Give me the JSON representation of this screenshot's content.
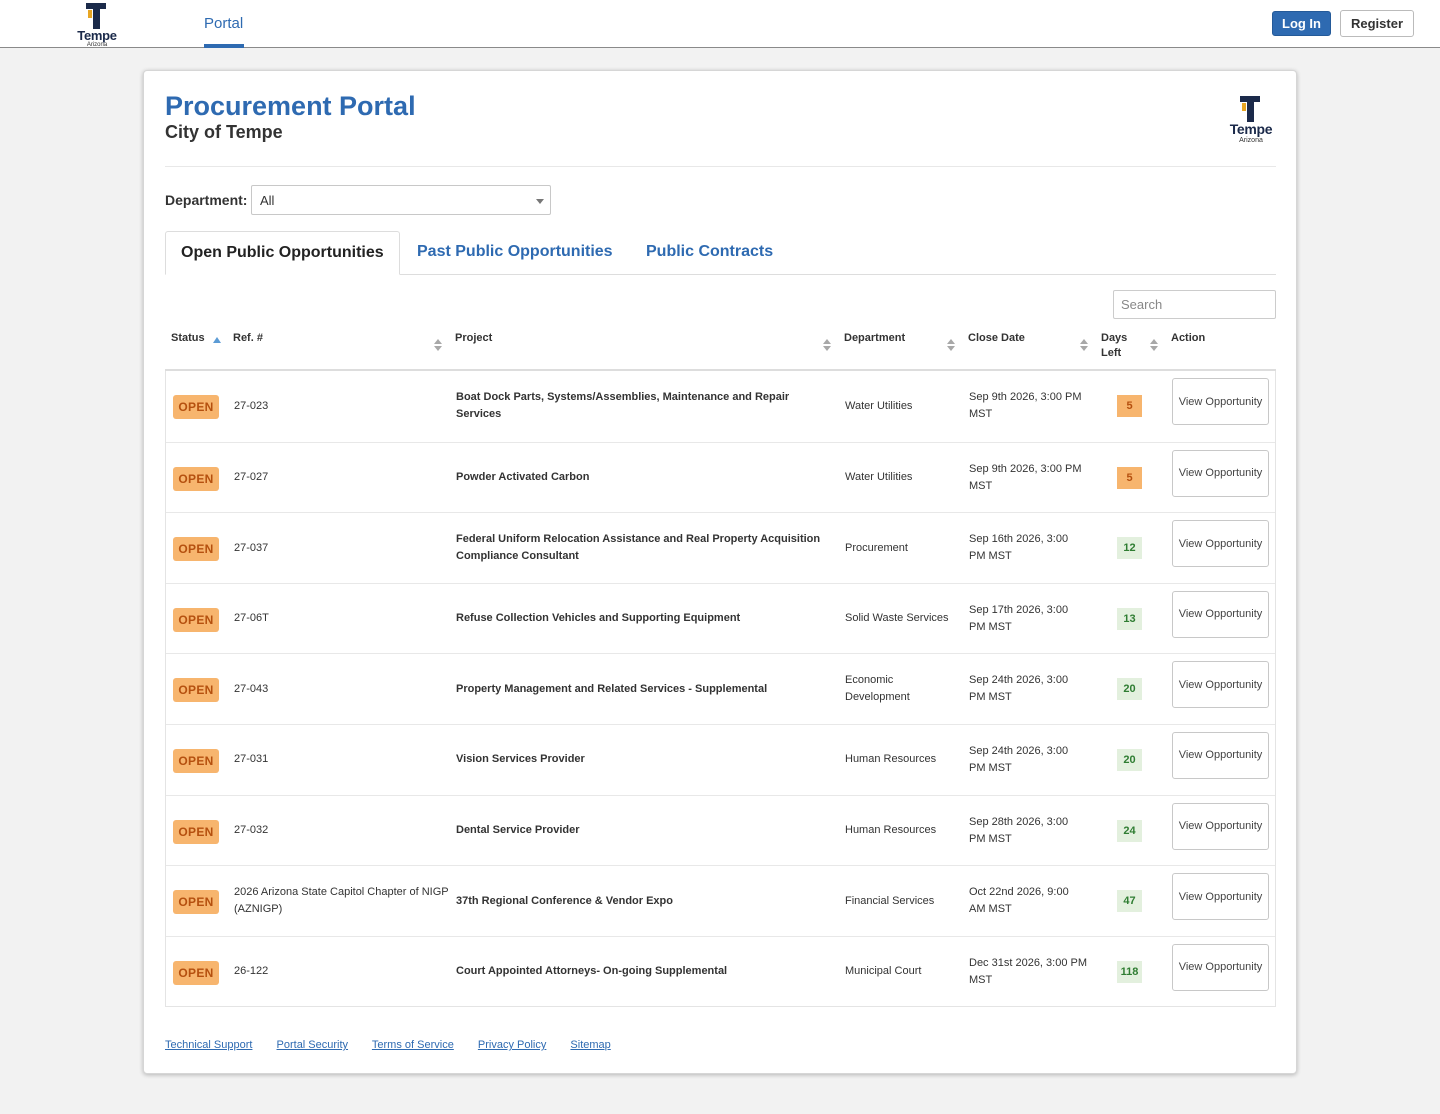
{
  "brand": {
    "name": "Tempe",
    "sub": "Arizona"
  },
  "nav": {
    "portal": "Portal"
  },
  "auth": {
    "login": "Log In",
    "register": "Register"
  },
  "header": {
    "title": "Procurement Portal",
    "subtitle": "City of Tempe"
  },
  "filter": {
    "label": "Department:",
    "value": "All"
  },
  "tabs": [
    {
      "label": "Open Public Opportunities"
    },
    {
      "label": "Past Public Opportunities"
    },
    {
      "label": "Public Contracts"
    }
  ],
  "search": {
    "placeholder": "Search"
  },
  "columns": {
    "status": "Status",
    "ref": "Ref. #",
    "project": "Project",
    "department": "Department",
    "close": "Close Date",
    "days": "Days Left",
    "action": "Action"
  },
  "rows": [
    {
      "status": "OPEN",
      "ref": "27-023",
      "project": "Boat Dock Parts, Systems/Assemblies, Maintenance and Repair Services",
      "department": "Water Utilities",
      "close": "Sep 9th 2026, 3:00 PM MST",
      "days": "5",
      "action": "View Opportunity"
    },
    {
      "status": "OPEN",
      "ref": "27-027",
      "project": "Powder Activated Carbon",
      "department": "Water Utilities",
      "close": "Sep 9th 2026, 3:00 PM MST",
      "days": "5",
      "action": "View Opportunity"
    },
    {
      "status": "OPEN",
      "ref": "27-037",
      "project": "Federal Uniform Relocation Assistance and Real Property Acquisition Compliance Consultant",
      "department": "Procurement",
      "close": "Sep 16th 2026, 3:00 PM MST",
      "days": "12",
      "action": "View Opportunity"
    },
    {
      "status": "OPEN",
      "ref": "27-06T",
      "project": "Refuse Collection Vehicles and Supporting Equipment",
      "department": "Solid Waste Services",
      "close": "Sep 17th 2026, 3:00 PM MST",
      "days": "13",
      "action": "View Opportunity"
    },
    {
      "status": "OPEN",
      "ref": "27-043",
      "project": "Property Management and Related Services - Supplemental",
      "department": "Economic Development",
      "close": "Sep 24th 2026, 3:00 PM MST",
      "days": "20",
      "action": "View Opportunity"
    },
    {
      "status": "OPEN",
      "ref": "27-031",
      "project": "Vision Services Provider",
      "department": "Human Resources",
      "close": "Sep 24th 2026, 3:00 PM MST",
      "days": "20",
      "action": "View Opportunity"
    },
    {
      "status": "OPEN",
      "ref": "27-032",
      "project": "Dental Service Provider",
      "department": "Human Resources",
      "close": "Sep 28th 2026, 3:00 PM MST",
      "days": "24",
      "action": "View Opportunity"
    },
    {
      "status": "OPEN",
      "ref": "2026 Arizona State Capitol Chapter of NIGP (AZNIGP)",
      "project": "37th Regional Conference & Vendor Expo",
      "department": "Financial Services",
      "close": "Oct 22nd 2026, 9:00 AM MST",
      "days": "47",
      "action": "View Opportunity"
    },
    {
      "status": "OPEN",
      "ref": "26-122",
      "project": "Court Appointed Attorneys- On-going Supplemental",
      "department": "Municipal Court",
      "close": "Dec 31st 2026, 3:00 PM MST",
      "days": "118",
      "action": "View Opportunity"
    }
  ],
  "footer": [
    {
      "label": "Technical Support"
    },
    {
      "label": "Portal Security"
    },
    {
      "label": "Terms of Service"
    },
    {
      "label": "Privacy Policy"
    },
    {
      "label": "Sitemap"
    }
  ],
  "colors": {
    "accent": "#2e6ab1",
    "open_badge": "#f7b56e",
    "days_ok": "#e3f0de"
  }
}
